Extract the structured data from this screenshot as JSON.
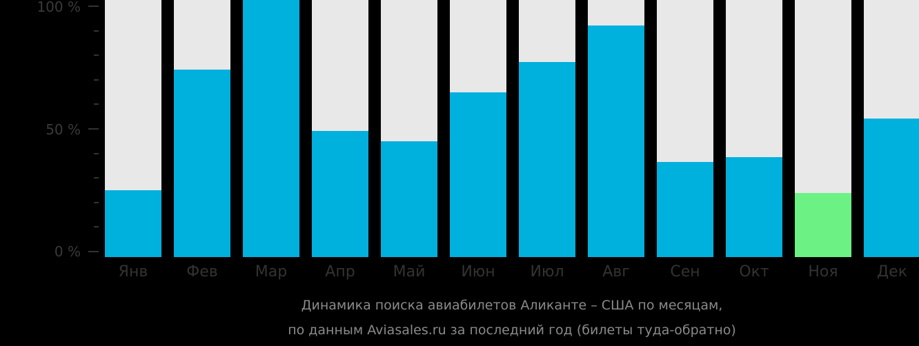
{
  "chart_data": {
    "type": "bar",
    "title": "Динамика поиска авиабилетов Аликанте – США по месяцам,",
    "subtitle": "по данным Aviasales.ru за последний год (билеты туда-обратно)",
    "categories": [
      "Янв",
      "Фев",
      "Мар",
      "Апр",
      "Май",
      "Июн",
      "Июл",
      "Авг",
      "Сен",
      "Окт",
      "Ноя",
      "Дек"
    ],
    "values": [
      26,
      73,
      100,
      49,
      45,
      64,
      76,
      90,
      37,
      39,
      25,
      54
    ],
    "highlight_index": 10,
    "xlabel": "",
    "ylabel": "",
    "ylim": [
      0,
      100
    ],
    "yticks": [
      "0 %",
      "50 %",
      "100 %"
    ],
    "colors": {
      "bar": "#00b0dd",
      "highlight": "#6cf185",
      "background_bar": "#e8e8e8",
      "page": "#000000"
    }
  }
}
